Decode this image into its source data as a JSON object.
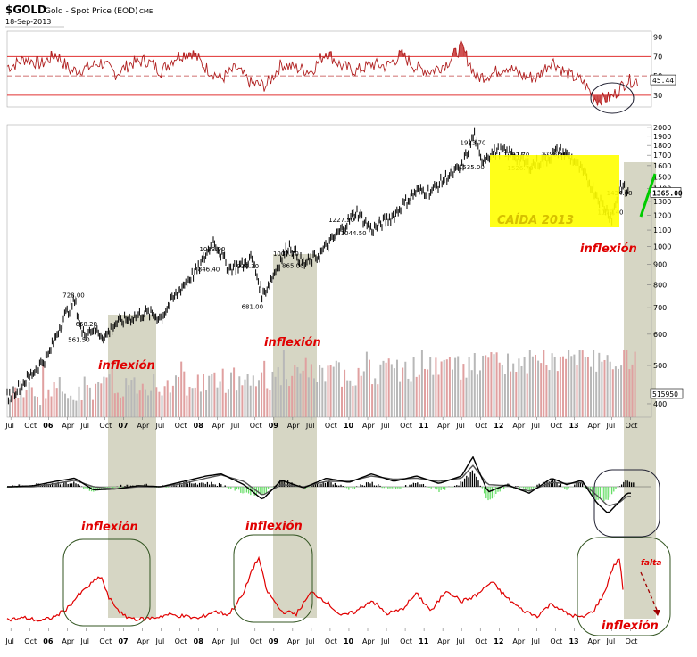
{
  "header": {
    "symbol": "$GOLD",
    "description": "Gold - Spot Price (EOD)",
    "exchange": "CME",
    "date": "18-Sep-2013"
  },
  "colors": {
    "price": "#000000",
    "oscillator": "#e00000",
    "rsi_line": "#b02020",
    "rsi_upper_fill": "#cc4444",
    "rsi_lower_fill": "#cc4444",
    "volume_grey": "#b8b8b8",
    "volume_red": "#e0a0a0",
    "shade": "#c8c8b0",
    "highlight": "#ffff00",
    "annotation_red": "#e00000",
    "trend_green": "#00cc00",
    "circle_green": "#335522"
  },
  "chart_data": [
    {
      "type": "line",
      "panel": "rsi",
      "y_ticks": [
        30,
        50,
        70,
        90
      ],
      "ylim": [
        18,
        96
      ],
      "reference_lines": [
        30,
        50,
        70
      ],
      "last_value_label": "45.44",
      "x_years": [
        2005.5,
        2005.7,
        2005.9,
        2006.1,
        2006.3,
        2006.5,
        2006.7,
        2006.9,
        2007.1,
        2007.3,
        2007.5,
        2007.7,
        2007.9,
        2008.1,
        2008.3,
        2008.5,
        2008.7,
        2008.9,
        2009.1,
        2009.3,
        2009.5,
        2009.7,
        2009.9,
        2010.1,
        2010.3,
        2010.5,
        2010.7,
        2010.9,
        2011.1,
        2011.3,
        2011.5,
        2011.7,
        2011.9,
        2012.1,
        2012.3,
        2012.5,
        2012.7,
        2012.9,
        2013.1,
        2013.3,
        2013.5,
        2013.7
      ],
      "values": [
        60,
        68,
        62,
        72,
        55,
        58,
        64,
        52,
        63,
        66,
        55,
        70,
        75,
        58,
        47,
        58,
        42,
        40,
        62,
        58,
        55,
        75,
        60,
        55,
        62,
        60,
        72,
        58,
        55,
        63,
        80,
        48,
        52,
        60,
        50,
        48,
        66,
        52,
        45,
        25,
        28,
        45
      ]
    },
    {
      "type": "line",
      "panel": "price",
      "title": "Gold - Spot Price (EOD)",
      "y_scale": "log",
      "y_ticks": [
        400,
        500,
        600,
        700,
        800,
        900,
        1000,
        1100,
        1200,
        1300,
        1400,
        1500,
        1600,
        1700,
        1800,
        1900,
        2000
      ],
      "ylim": [
        370,
        2030
      ],
      "last_value_label": "1365.00",
      "volume_label": "515950",
      "x_tick_labels": [
        "Jul",
        "Oct",
        "06",
        "Apr",
        "Jul",
        "Oct",
        "07",
        "Apr",
        "Jul",
        "Oct",
        "08",
        "Apr",
        "Jul",
        "Oct",
        "09",
        "Apr",
        "Jul",
        "Oct",
        "10",
        "Apr",
        "Jul",
        "Oct",
        "11",
        "Apr",
        "Jul",
        "Oct",
        "12",
        "Apr",
        "Jul",
        "Oct",
        "13",
        "Apr",
        "Jul",
        "Oct"
      ],
      "x_tick_years": [
        2005.5,
        2005.75,
        2006.0,
        2006.25,
        2006.5,
        2006.75,
        2007.0,
        2007.25,
        2007.5,
        2007.75,
        2008.0,
        2008.25,
        2008.5,
        2008.75,
        2009.0,
        2009.25,
        2009.5,
        2009.75,
        2010.0,
        2010.25,
        2010.5,
        2010.75,
        2011.0,
        2011.25,
        2011.5,
        2011.75,
        2012.0,
        2012.25,
        2012.5,
        2012.75,
        2013.0,
        2013.25,
        2013.5,
        2013.75
      ],
      "x_years": [
        2005.5,
        2005.75,
        2006.0,
        2006.2,
        2006.35,
        2006.45,
        2006.6,
        2006.75,
        2006.9,
        2007.1,
        2007.3,
        2007.5,
        2007.75,
        2008.0,
        2008.2,
        2008.4,
        2008.6,
        2008.7,
        2008.85,
        2009.0,
        2009.2,
        2009.4,
        2009.6,
        2009.9,
        2010.1,
        2010.3,
        2010.6,
        2010.9,
        2011.1,
        2011.3,
        2011.5,
        2011.67,
        2011.75,
        2011.85,
        2012.0,
        2012.2,
        2012.4,
        2012.6,
        2012.8,
        2013.0,
        2013.2,
        2013.35,
        2013.5,
        2013.62,
        2013.7
      ],
      "values": [
        420,
        470,
        530,
        660,
        728,
        600,
        620,
        590,
        640,
        660,
        680,
        660,
        780,
        880,
        1033.9,
        880,
        900,
        936.3,
        750,
        850,
        1007.7,
        900,
        950,
        1100,
        1227.5,
        1100,
        1200,
        1380,
        1380,
        1500,
        1580,
        1923.7,
        1650,
        1700,
        1750,
        1700,
        1600,
        1650,
        1750,
        1650,
        1450,
        1300,
        1179.4,
        1434,
        1365
      ],
      "annotations": [
        {
          "x": 2006.38,
          "value": 728.0,
          "label": "728.00"
        },
        {
          "x": 2006.55,
          "value": 668.2,
          "label": "668.20"
        },
        {
          "x": 2006.45,
          "value": 561.5,
          "label": "561.50"
        },
        {
          "x": 2008.2,
          "value": 1033.9,
          "label": "1033.90"
        },
        {
          "x": 2008.18,
          "value": 846.4,
          "label": "846.40"
        },
        {
          "x": 2008.7,
          "value": 936.3,
          "label": "936.30"
        },
        {
          "x": 2008.76,
          "value": 681.0,
          "label": "681.00"
        },
        {
          "x": 2009.18,
          "value": 1007.7,
          "label": "1007.70"
        },
        {
          "x": 2009.3,
          "value": 865.0,
          "label": "865.00"
        },
        {
          "x": 2009.92,
          "value": 1227.5,
          "label": "1227.50"
        },
        {
          "x": 2010.08,
          "value": 1044.5,
          "label": "1044.50"
        },
        {
          "x": 2011.67,
          "value": 1923.7,
          "label": "1923.70"
        },
        {
          "x": 2011.65,
          "value": 1535.0,
          "label": "1535.00"
        },
        {
          "x": 2012.25,
          "value": 1792.7,
          "label": "1792.70"
        },
        {
          "x": 2012.3,
          "value": 1526.7,
          "label": "1526.70"
        },
        {
          "x": 2012.75,
          "value": 1798.1,
          "label": "1798.10"
        },
        {
          "x": 2013.5,
          "value": 1179.4,
          "label": "1179.40"
        },
        {
          "x": 2013.62,
          "value": 1434.0,
          "label": "1434.00"
        }
      ],
      "notes": [
        "CAÍDA 2013",
        "inflexión",
        "inflexión",
        "inflexión"
      ]
    },
    {
      "type": "line",
      "panel": "macd",
      "x_years": [
        2005.5,
        2005.8,
        2006.1,
        2006.35,
        2006.6,
        2006.9,
        2007.2,
        2007.5,
        2007.8,
        2008.1,
        2008.3,
        2008.6,
        2008.85,
        2009.1,
        2009.4,
        2009.7,
        2010.0,
        2010.3,
        2010.6,
        2010.9,
        2011.2,
        2011.5,
        2011.65,
        2011.85,
        2012.1,
        2012.4,
        2012.7,
        2012.9,
        2013.1,
        2013.3,
        2013.45,
        2013.6,
        2013.7
      ],
      "macd": [
        0,
        1,
        5,
        8,
        -3,
        -2,
        1,
        0,
        5,
        10,
        12,
        2,
        -12,
        6,
        -1,
        8,
        4,
        12,
        5,
        10,
        3,
        10,
        28,
        -5,
        2,
        -6,
        8,
        2,
        6,
        -15,
        -25,
        -14,
        -6
      ],
      "signal": [
        0,
        0,
        3,
        6,
        0,
        -2,
        0,
        0,
        3,
        8,
        11,
        5,
        -8,
        2,
        0,
        5,
        5,
        10,
        7,
        8,
        5,
        8,
        20,
        2,
        1,
        -4,
        4,
        3,
        4,
        -8,
        -18,
        -15,
        -9
      ]
    },
    {
      "type": "line",
      "panel": "oscillator",
      "x_tick_labels": [
        "Jul",
        "Oct",
        "06",
        "Apr",
        "Jul",
        "Oct",
        "07",
        "Apr",
        "Jul",
        "Oct",
        "08",
        "Apr",
        "Jul",
        "Oct",
        "09",
        "Apr",
        "Jul",
        "Oct",
        "10",
        "Apr",
        "Jul",
        "Oct",
        "11",
        "Apr",
        "Jul",
        "Oct",
        "12",
        "Apr",
        "Jul",
        "Oct",
        "13",
        "Apr",
        "Jul",
        "Oct"
      ],
      "x_years": [
        2005.5,
        2005.7,
        2005.9,
        2006.1,
        2006.25,
        2006.4,
        2006.6,
        2006.7,
        2006.8,
        2007.0,
        2007.2,
        2007.4,
        2007.6,
        2007.8,
        2008.0,
        2008.2,
        2008.4,
        2008.6,
        2008.7,
        2008.8,
        2008.9,
        2009.1,
        2009.3,
        2009.5,
        2009.7,
        2009.9,
        2010.1,
        2010.3,
        2010.5,
        2010.7,
        2010.9,
        2011.1,
        2011.3,
        2011.5,
        2011.7,
        2011.9,
        2012.1,
        2012.3,
        2012.5,
        2012.7,
        2012.9,
        2013.1,
        2013.25,
        2013.4,
        2013.5,
        2013.6,
        2013.65
      ],
      "values": [
        8,
        10,
        6,
        12,
        22,
        38,
        55,
        62,
        35,
        12,
        8,
        10,
        14,
        12,
        9,
        18,
        14,
        40,
        68,
        85,
        45,
        18,
        15,
        42,
        30,
        12,
        18,
        32,
        15,
        20,
        40,
        18,
        45,
        30,
        38,
        55,
        35,
        20,
        12,
        28,
        15,
        10,
        18,
        40,
        70,
        85,
        45
      ]
    }
  ]
}
